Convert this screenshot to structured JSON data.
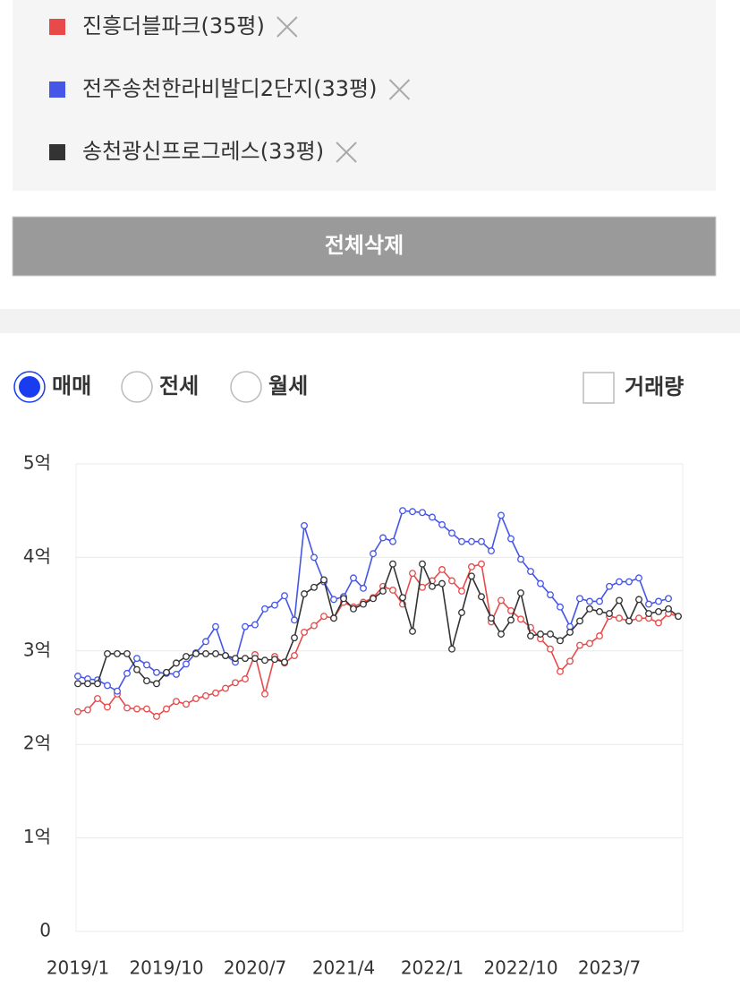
{
  "ui": {
    "delete_all": "전체삭제",
    "trade_types": [
      "매매",
      "전세",
      "월세"
    ],
    "selected_trade_type": 0,
    "volume_checkbox": "거래량",
    "volume_checked": false
  },
  "chart_data": {
    "type": "line",
    "categories": [
      "2019/1",
      null,
      null,
      null,
      null,
      null,
      null,
      null,
      null,
      "2019/10",
      null,
      null,
      null,
      null,
      null,
      null,
      null,
      null,
      "2020/7",
      null,
      null,
      null,
      null,
      null,
      null,
      null,
      null,
      "2021/4",
      null,
      null,
      null,
      null,
      null,
      null,
      null,
      null,
      "2022/1",
      null,
      null,
      null,
      null,
      null,
      null,
      null,
      null,
      "2022/10",
      null,
      null,
      null,
      null,
      null,
      null,
      null,
      null,
      "2023/7",
      null,
      null,
      null,
      null,
      null,
      null,
      null
    ],
    "series": [
      {
        "name": "진흥더블파크(35평)",
        "color": "#e84a4a",
        "values": [
          2.35,
          2.37,
          2.49,
          2.4,
          2.54,
          2.39,
          2.38,
          2.38,
          2.3,
          2.38,
          2.46,
          2.43,
          2.49,
          2.52,
          2.55,
          2.6,
          2.66,
          2.7,
          2.96,
          2.54,
          2.94,
          2.87,
          2.95,
          3.2,
          3.27,
          3.37,
          3.35,
          3.52,
          3.47,
          3.52,
          3.57,
          3.69,
          3.65,
          3.5,
          3.83,
          3.68,
          3.75,
          3.87,
          3.75,
          3.64,
          3.9,
          3.93,
          3.31,
          3.54,
          3.43,
          3.34,
          3.25,
          3.13,
          3.02,
          2.78,
          2.89,
          3.06,
          3.08,
          3.16,
          3.37,
          3.35,
          3.32,
          3.35,
          3.35,
          3.3,
          3.4,
          3.37
        ]
      },
      {
        "name": "전주송천한라비발디2단지(33평)",
        "color": "#4455e8",
        "values": [
          2.73,
          2.7,
          2.69,
          2.63,
          2.57,
          2.76,
          2.92,
          2.85,
          2.77,
          2.76,
          2.75,
          2.86,
          2.98,
          3.1,
          3.26,
          2.95,
          2.88,
          3.26,
          3.28,
          3.45,
          3.49,
          3.59,
          3.33,
          4.34,
          4.0,
          3.74,
          3.55,
          3.58,
          3.78,
          3.67,
          4.04,
          4.21,
          4.17,
          4.5,
          4.49,
          4.48,
          4.43,
          4.35,
          4.26,
          4.17,
          4.17,
          4.17,
          4.07,
          4.45,
          4.2,
          3.98,
          3.85,
          3.72,
          3.6,
          3.47,
          3.26,
          3.56,
          3.53,
          3.53,
          3.69,
          3.74,
          3.74,
          3.78,
          3.5,
          3.53,
          3.56,
          null
        ]
      },
      {
        "name": "송천광신프로그레스(33평)",
        "color": "#333333",
        "values": [
          2.65,
          2.65,
          2.65,
          2.97,
          2.97,
          2.97,
          2.8,
          2.68,
          2.65,
          2.77,
          2.87,
          2.94,
          2.97,
          2.97,
          2.97,
          2.95,
          2.92,
          2.92,
          2.92,
          2.9,
          2.91,
          2.88,
          3.14,
          3.61,
          3.68,
          3.76,
          3.35,
          3.56,
          3.45,
          3.5,
          3.56,
          3.64,
          3.93,
          3.57,
          3.21,
          3.93,
          3.69,
          3.72,
          3.02,
          3.41,
          3.8,
          3.58,
          3.35,
          3.18,
          3.33,
          3.62,
          3.16,
          3.18,
          3.18,
          3.11,
          3.2,
          3.32,
          3.45,
          3.42,
          3.4,
          3.54,
          3.32,
          3.55,
          3.4,
          3.42,
          3.45,
          3.37
        ]
      }
    ],
    "ylim": [
      0,
      5
    ],
    "yticks": [
      0,
      {
        "value": 1,
        "label": "1억"
      },
      {
        "value": 2,
        "label": "2억"
      },
      {
        "value": 3,
        "label": "3억"
      },
      {
        "value": 4,
        "label": "4억"
      },
      {
        "value": 5,
        "label": "5억"
      }
    ],
    "grid": true
  }
}
